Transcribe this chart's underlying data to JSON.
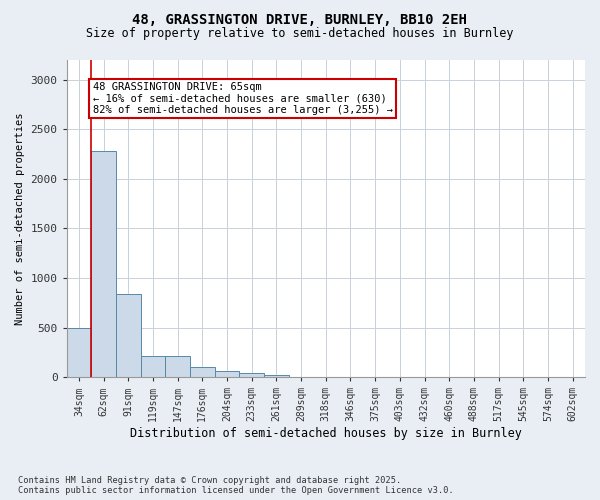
{
  "title1": "48, GRASSINGTON DRIVE, BURNLEY, BB10 2EH",
  "title2": "Size of property relative to semi-detached houses in Burnley",
  "xlabel": "Distribution of semi-detached houses by size in Burnley",
  "ylabel": "Number of semi-detached properties",
  "categories": [
    "34sqm",
    "62sqm",
    "91sqm",
    "119sqm",
    "147sqm",
    "176sqm",
    "204sqm",
    "233sqm",
    "261sqm",
    "289sqm",
    "318sqm",
    "346sqm",
    "375sqm",
    "403sqm",
    "432sqm",
    "460sqm",
    "488sqm",
    "517sqm",
    "545sqm",
    "574sqm",
    "602sqm"
  ],
  "values": [
    500,
    2280,
    840,
    215,
    215,
    105,
    65,
    40,
    20,
    5,
    5,
    0,
    0,
    0,
    0,
    0,
    0,
    0,
    0,
    0,
    0
  ],
  "bar_color": "#ccd9e8",
  "bar_edge_color": "#5588aa",
  "red_line_x": 0.5,
  "annotation_text": "48 GRASSINGTON DRIVE: 65sqm\n← 16% of semi-detached houses are smaller (630)\n82% of semi-detached houses are larger (3,255) →",
  "annotation_box_color": "#ffffff",
  "annotation_box_edge": "#cc0000",
  "ylim": [
    0,
    3200
  ],
  "yticks": [
    0,
    500,
    1000,
    1500,
    2000,
    2500,
    3000
  ],
  "footer": "Contains HM Land Registry data © Crown copyright and database right 2025.\nContains public sector information licensed under the Open Government Licence v3.0.",
  "bg_color": "#e8eef4",
  "plot_bg_color": "#ffffff"
}
